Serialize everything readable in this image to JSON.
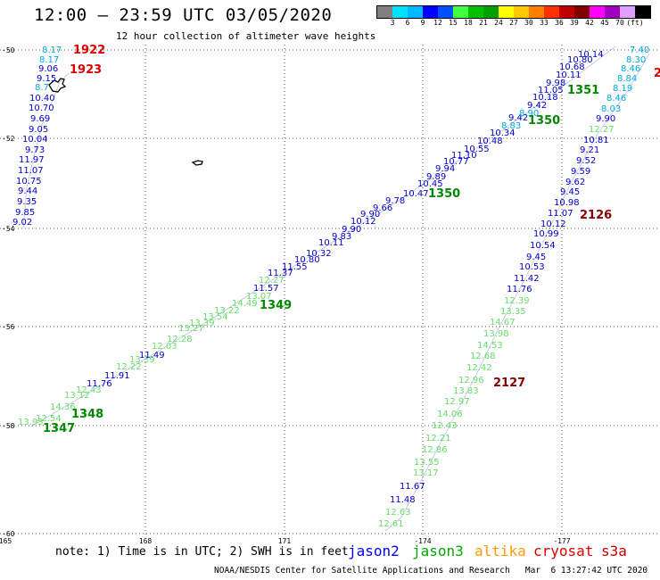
{
  "header": {
    "title": "12:00 – 23:59 UTC 03/05/2020",
    "subtitle": "12 hour collection of altimeter wave heights"
  },
  "colorbar": {
    "colors": [
      "#808080",
      "#00e0ff",
      "#00b8ff",
      "#0000ff",
      "#0050ff",
      "#40ff40",
      "#00c000",
      "#00a000",
      "#ffff00",
      "#ffc800",
      "#ff8000",
      "#ff3000",
      "#c00000",
      "#800000",
      "#ff00ff",
      "#a000c0",
      "#e0a0ff",
      "#000000"
    ],
    "ticks": [
      "3",
      "6",
      "9",
      "12",
      "15",
      "18",
      "21",
      "24",
      "27",
      "30",
      "33",
      "36",
      "39",
      "42",
      "45",
      "70",
      "(ft)"
    ]
  },
  "axes": {
    "lat_labels": [
      "-50",
      "-52",
      "-54",
      "-56",
      "-58",
      "-60"
    ],
    "lon_labels": [
      "165",
      "168",
      "171",
      "-174",
      "-177"
    ]
  },
  "tracks": [
    {
      "name": "pass-1922-1923",
      "color": "#0000cc",
      "labels": [
        {
          "text": "8.17",
          "color": "#00aadd"
        },
        {
          "text": "8.17",
          "color": "#00aadd"
        },
        {
          "text": "9.06",
          "color": "#0000cc"
        },
        {
          "text": "9.15",
          "color": "#0000cc"
        },
        {
          "text": "8.7",
          "color": "#00aadd"
        },
        {
          "text": "10.40",
          "color": "#0000cc"
        },
        {
          "text": "10.70",
          "color": "#0000cc"
        },
        {
          "text": "9.69",
          "color": "#0000cc"
        },
        {
          "text": "9.05",
          "color": "#0000cc"
        },
        {
          "text": "10.04",
          "color": "#0000cc"
        },
        {
          "text": "9.73",
          "color": "#0000cc"
        },
        {
          "text": "11.97",
          "color": "#0000cc"
        },
        {
          "text": "11.07",
          "color": "#0000cc"
        },
        {
          "text": "10.75",
          "color": "#0000cc"
        },
        {
          "text": "9.44",
          "color": "#0000cc"
        },
        {
          "text": "9.35",
          "color": "#0000cc"
        },
        {
          "text": "9.85",
          "color": "#0000cc"
        },
        {
          "text": "9.02",
          "color": "#0000cc"
        }
      ]
    },
    {
      "name": "pass-1347-1351",
      "color": "#0000cc",
      "labels": [
        {
          "text": "13.93",
          "color": "#66dd66"
        },
        {
          "text": "12.54",
          "color": "#66dd66"
        },
        {
          "text": "14.36",
          "color": "#66dd66"
        },
        {
          "text": "13.12",
          "color": "#66dd66"
        },
        {
          "text": "12.43",
          "color": "#66dd66"
        },
        {
          "text": "11.76",
          "color": "#0000cc"
        },
        {
          "text": "11.91",
          "color": "#0000cc"
        },
        {
          "text": "12.22",
          "color": "#66dd66"
        },
        {
          "text": "13.39",
          "color": "#66dd66"
        },
        {
          "text": "11.49",
          "color": "#0000cc"
        },
        {
          "text": "12.03",
          "color": "#66dd66"
        },
        {
          "text": "12.28",
          "color": "#66dd66"
        },
        {
          "text": "13.27",
          "color": "#66dd66"
        },
        {
          "text": "13.39",
          "color": "#66dd66"
        },
        {
          "text": "13.54",
          "color": "#66dd66"
        },
        {
          "text": "13.22",
          "color": "#66dd66"
        },
        {
          "text": "14.49",
          "color": "#66dd66"
        },
        {
          "text": "13.07",
          "color": "#66dd66"
        },
        {
          "text": "11.57",
          "color": "#0000cc"
        },
        {
          "text": "12.27",
          "color": "#66dd66"
        },
        {
          "text": "11.37",
          "color": "#0000cc"
        },
        {
          "text": "11.55",
          "color": "#0000cc"
        },
        {
          "text": "10.80",
          "color": "#0000cc"
        },
        {
          "text": "10.32",
          "color": "#0000cc"
        },
        {
          "text": "10.11",
          "color": "#0000cc"
        },
        {
          "text": "9.83",
          "color": "#0000cc"
        },
        {
          "text": "9.90",
          "color": "#0000cc"
        },
        {
          "text": "10.12",
          "color": "#0000cc"
        },
        {
          "text": "9.90",
          "color": "#0000cc"
        },
        {
          "text": "9.66",
          "color": "#0000cc"
        },
        {
          "text": "9.78",
          "color": "#0000cc"
        },
        {
          "text": "10.47",
          "color": "#0000cc"
        },
        {
          "text": "10.45",
          "color": "#0000cc"
        },
        {
          "text": "9.89",
          "color": "#0000cc"
        },
        {
          "text": "9.94",
          "color": "#0000cc"
        },
        {
          "text": "10.77",
          "color": "#0000cc"
        },
        {
          "text": "11.10",
          "color": "#0000cc"
        },
        {
          "text": "10.55",
          "color": "#0000cc"
        },
        {
          "text": "10.48",
          "color": "#0000cc"
        },
        {
          "text": "10.34",
          "color": "#0000cc"
        },
        {
          "text": "8.83",
          "color": "#00aadd"
        },
        {
          "text": "9.42",
          "color": "#0000cc"
        },
        {
          "text": "8.90",
          "color": "#00aadd"
        },
        {
          "text": "9.42",
          "color": "#0000cc"
        },
        {
          "text": "10.18",
          "color": "#0000cc"
        },
        {
          "text": "11.05",
          "color": "#0000cc"
        },
        {
          "text": "9.98",
          "color": "#0000cc"
        },
        {
          "text": "10.11",
          "color": "#0000cc"
        },
        {
          "text": "10.68",
          "color": "#0000cc"
        },
        {
          "text": "10.80",
          "color": "#0000cc"
        },
        {
          "text": "10.14",
          "color": "#0000cc"
        }
      ]
    },
    {
      "name": "pass-2126-2127",
      "color": "#0000cc",
      "labels": [
        {
          "text": "7.40",
          "color": "#00aadd"
        },
        {
          "text": "8.30",
          "color": "#00aadd"
        },
        {
          "text": "8.46",
          "color": "#00aadd"
        },
        {
          "text": "8.84",
          "color": "#00aadd"
        },
        {
          "text": "8.19",
          "color": "#00aadd"
        },
        {
          "text": "8.46",
          "color": "#00aadd"
        },
        {
          "text": "8.03",
          "color": "#00aadd"
        },
        {
          "text": "9.90",
          "color": "#0000cc"
        },
        {
          "text": "12.27",
          "color": "#66dd66"
        },
        {
          "text": "10.81",
          "color": "#0000cc"
        },
        {
          "text": "9.21",
          "color": "#0000cc"
        },
        {
          "text": "9.52",
          "color": "#0000cc"
        },
        {
          "text": "9.59",
          "color": "#0000cc"
        },
        {
          "text": "9.62",
          "color": "#0000cc"
        },
        {
          "text": "9.45",
          "color": "#0000cc"
        },
        {
          "text": "10.98",
          "color": "#0000cc"
        },
        {
          "text": "11.07",
          "color": "#0000cc"
        },
        {
          "text": "10.12",
          "color": "#0000cc"
        },
        {
          "text": "10.99",
          "color": "#0000cc"
        },
        {
          "text": "10.54",
          "color": "#0000cc"
        },
        {
          "text": "9.45",
          "color": "#0000cc"
        },
        {
          "text": "10.53",
          "color": "#0000cc"
        },
        {
          "text": "11.42",
          "color": "#0000cc"
        },
        {
          "text": "11.76",
          "color": "#0000cc"
        },
        {
          "text": "12.39",
          "color": "#66dd66"
        },
        {
          "text": "13.35",
          "color": "#66dd66"
        },
        {
          "text": "14.67",
          "color": "#66dd66"
        },
        {
          "text": "13.98",
          "color": "#66dd66"
        },
        {
          "text": "14.53",
          "color": "#66dd66"
        },
        {
          "text": "12.68",
          "color": "#66dd66"
        },
        {
          "text": "12.42",
          "color": "#66dd66"
        },
        {
          "text": "12.96",
          "color": "#66dd66"
        },
        {
          "text": "13.83",
          "color": "#66dd66"
        },
        {
          "text": "12.97",
          "color": "#66dd66"
        },
        {
          "text": "14.06",
          "color": "#66dd66"
        },
        {
          "text": "12.43",
          "color": "#66dd66"
        },
        {
          "text": "12.21",
          "color": "#66dd66"
        },
        {
          "text": "12.86",
          "color": "#66dd66"
        },
        {
          "text": "13.55",
          "color": "#66dd66"
        },
        {
          "text": "13.17",
          "color": "#66dd66"
        },
        {
          "text": "11.67",
          "color": "#0000cc"
        },
        {
          "text": "11.48",
          "color": "#0000cc"
        },
        {
          "text": "12.63",
          "color": "#66dd66"
        },
        {
          "text": "12.61",
          "color": "#66dd66"
        }
      ]
    }
  ],
  "time_tags": [
    {
      "text": "1922",
      "color": "#dd0000"
    },
    {
      "text": "1923",
      "color": "#dd0000"
    },
    {
      "text": "1351",
      "color": "#008800"
    },
    {
      "text": "1350",
      "color": "#008800"
    },
    {
      "text": "1350",
      "color": "#008800"
    },
    {
      "text": "1349",
      "color": "#008800"
    },
    {
      "text": "1348",
      "color": "#008800"
    },
    {
      "text": "1347",
      "color": "#008800"
    },
    {
      "text": "2126",
      "color": "#880000"
    },
    {
      "text": "2127",
      "color": "#880000"
    },
    {
      "text": "2",
      "color": "#dd0000"
    }
  ],
  "note": "note: 1) Time is in UTC; 2) SWH is in feet",
  "satellites": [
    {
      "label": "jason2",
      "color": "#0000ff"
    },
    {
      "label": "jason3",
      "color": "#00aa00"
    },
    {
      "label": "altika",
      "color": "#ff9900"
    },
    {
      "label": "cryosat",
      "color": "#dd0000"
    },
    {
      "label": "s3a",
      "color": "#cc0000"
    }
  ],
  "footer": "NOAA/NESDIS Center for Satellite Applications and Research   Mar  6 13:27:42 UTC 2020"
}
